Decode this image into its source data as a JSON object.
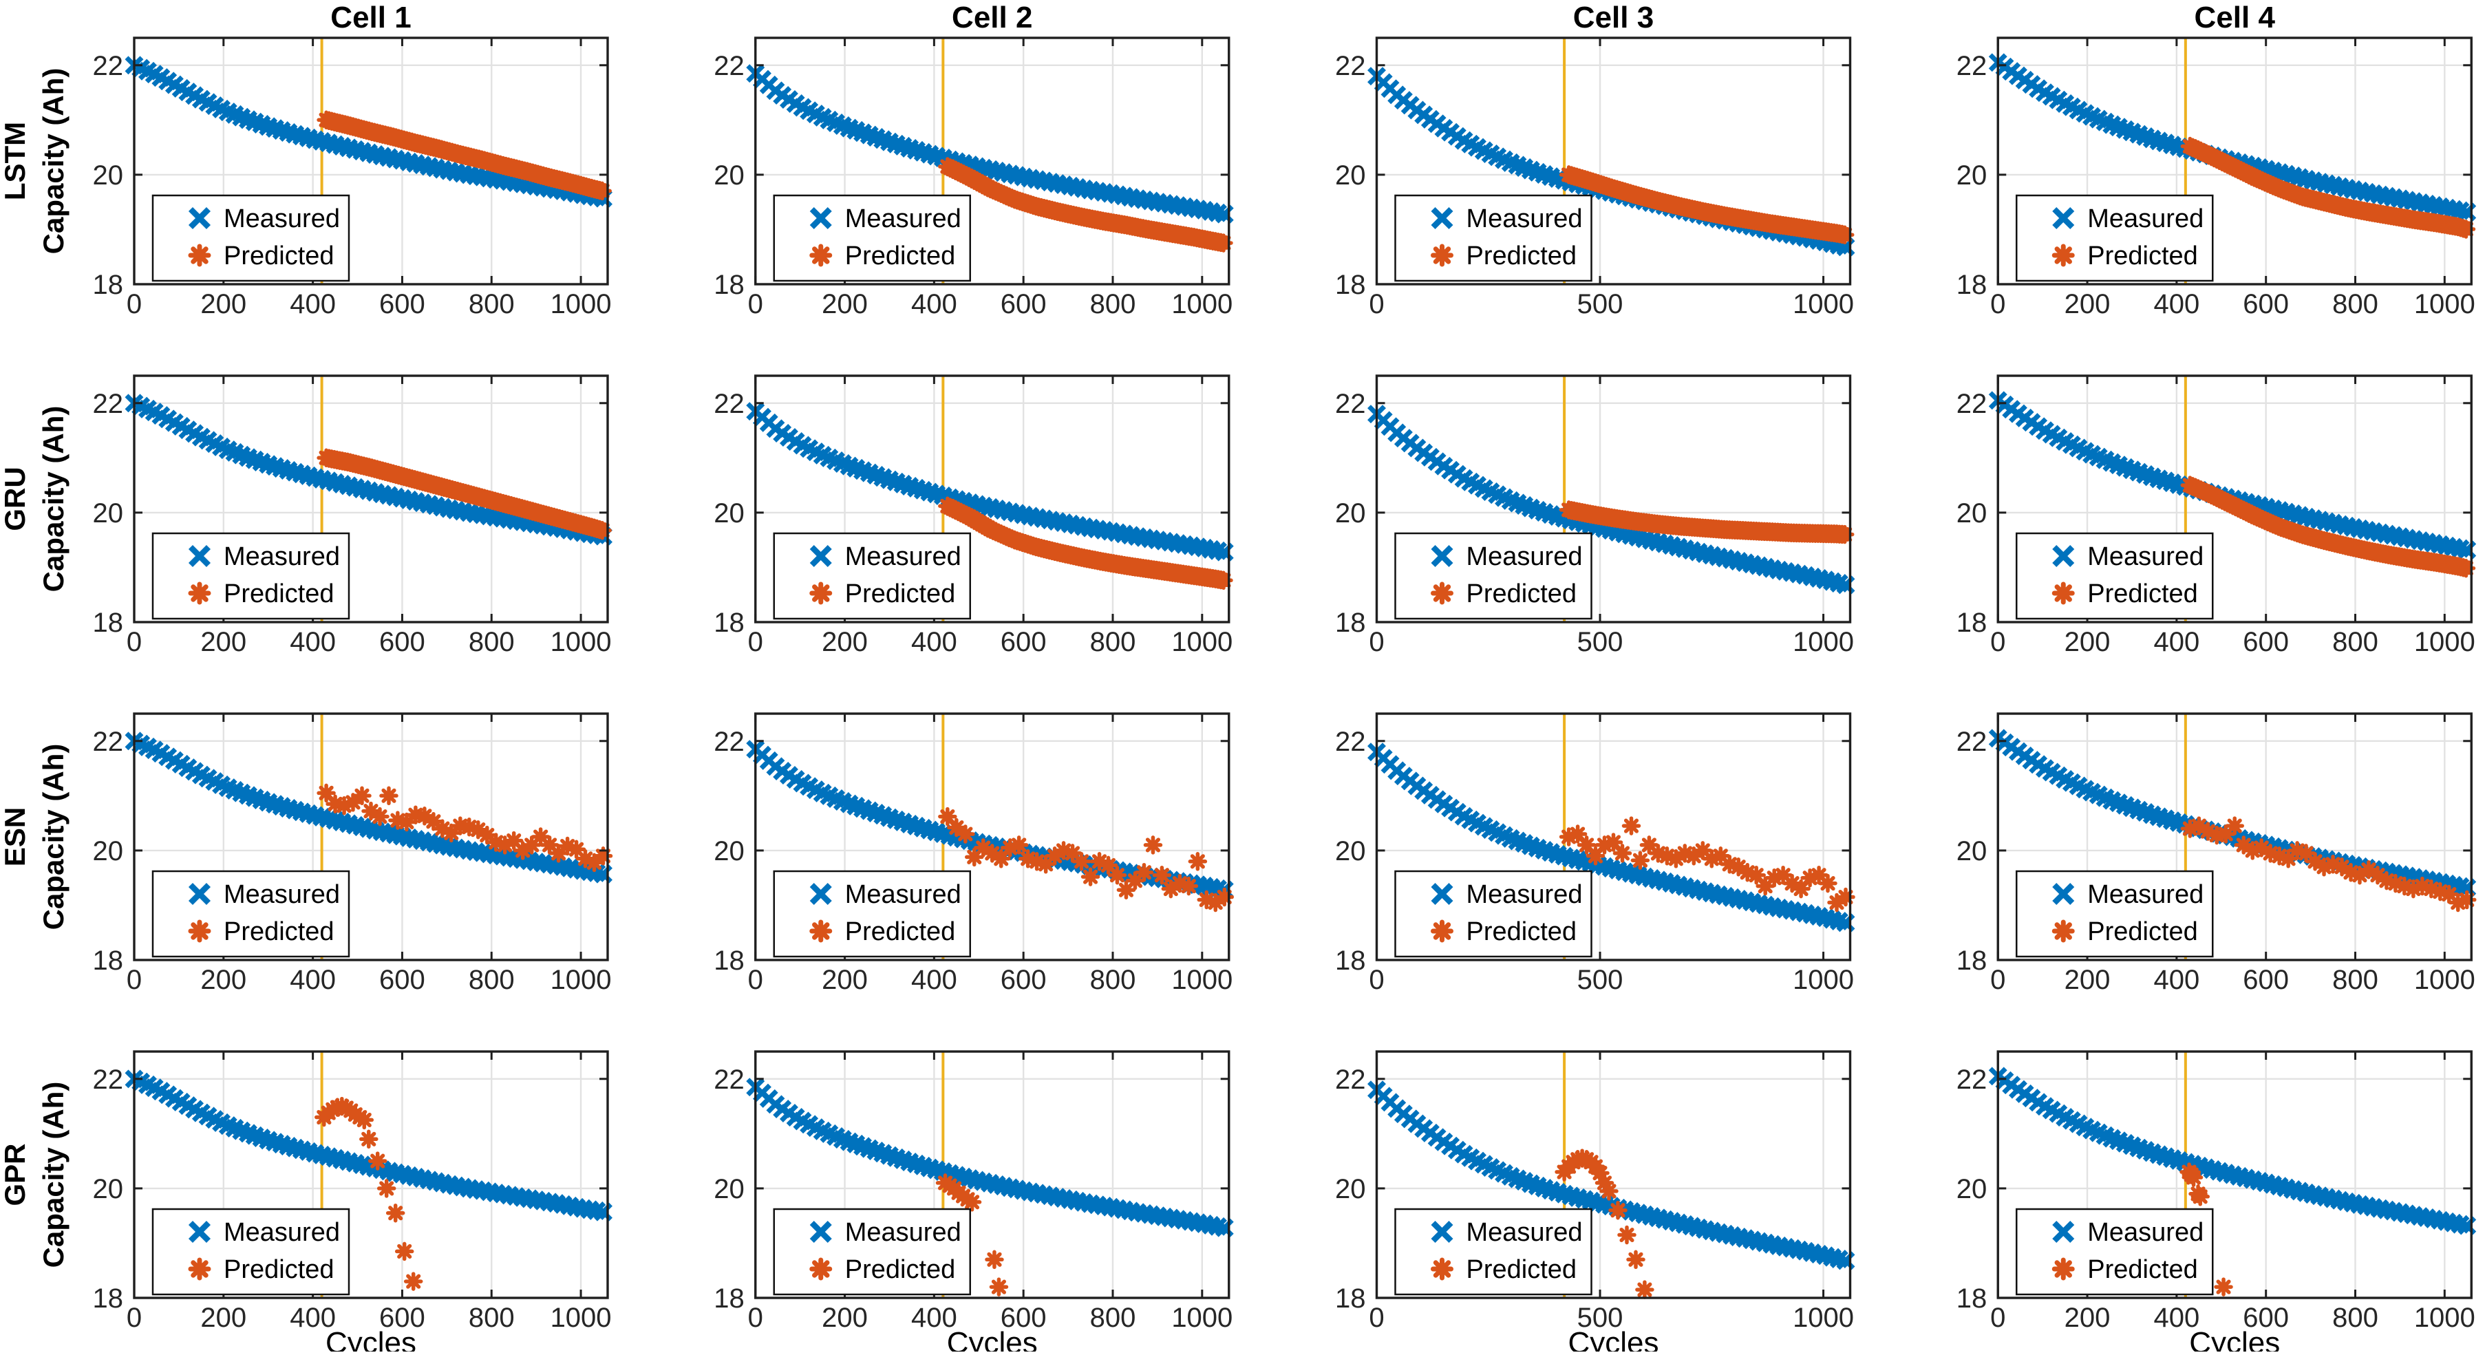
{
  "figure": {
    "background": "#ffffff",
    "description_title": "Battery capacity prediction comparison grid"
  },
  "colors": {
    "measured": "#0072BD",
    "predicted": "#D95319",
    "split_line": "#EDB120",
    "grid": "#E2E2E2",
    "tick_label": "#262626",
    "spine": "#1F1F1F",
    "text": "#000000"
  },
  "chart_data": {
    "type": "scatter",
    "columns": [
      {
        "title": "Cell 1",
        "xticks": [
          0,
          200,
          400,
          600,
          800,
          1000
        ]
      },
      {
        "title": "Cell 2",
        "xticks": [
          0,
          200,
          400,
          600,
          800,
          1000
        ]
      },
      {
        "title": "Cell 3",
        "xticks": [
          0,
          500,
          1000
        ]
      },
      {
        "title": "Cell 4",
        "xticks": [
          0,
          200,
          400,
          600,
          800,
          1000
        ]
      }
    ],
    "rows": [
      {
        "model": "LSTM"
      },
      {
        "model": "GRU"
      },
      {
        "model": "ESN"
      },
      {
        "model": "GPR"
      }
    ],
    "ylabel_line2": "Capacity (Ah)",
    "xlabel": "Cycles",
    "legend": {
      "measured_label": "Measured",
      "predicted_label": "Predicted",
      "position": "lower-left"
    },
    "xlim": [
      0,
      1060
    ],
    "ylim": [
      18,
      22.5
    ],
    "yticks": [
      18,
      20,
      22
    ],
    "grid": true,
    "train_test_split_x": 420,
    "x_measured": [
      0,
      50,
      100,
      150,
      200,
      250,
      300,
      350,
      400,
      450,
      500,
      550,
      600,
      650,
      700,
      750,
      800,
      850,
      900,
      950,
      1000,
      1050
    ],
    "measured": {
      "Cell 1": [
        22.0,
        21.82,
        21.6,
        21.38,
        21.18,
        21.02,
        20.88,
        20.76,
        20.65,
        20.55,
        20.45,
        20.35,
        20.26,
        20.17,
        20.08,
        20.0,
        19.93,
        19.86,
        19.79,
        19.72,
        19.64,
        19.57
      ],
      "Cell 2": [
        21.85,
        21.5,
        21.25,
        21.05,
        20.88,
        20.74,
        20.6,
        20.47,
        20.35,
        20.24,
        20.14,
        20.05,
        19.96,
        19.88,
        19.8,
        19.72,
        19.65,
        19.57,
        19.5,
        19.43,
        19.36,
        19.28
      ],
      "Cell 3": [
        21.8,
        21.42,
        21.12,
        20.85,
        20.6,
        20.4,
        20.22,
        20.07,
        19.94,
        19.83,
        19.73,
        19.62,
        19.52,
        19.42,
        19.32,
        19.22,
        19.13,
        19.04,
        18.95,
        18.87,
        18.78,
        18.68
      ],
      "Cell 4": [
        22.05,
        21.78,
        21.52,
        21.3,
        21.1,
        20.93,
        20.78,
        20.64,
        20.52,
        20.41,
        20.3,
        20.2,
        20.1,
        20.0,
        19.9,
        19.81,
        19.72,
        19.64,
        19.56,
        19.48,
        19.4,
        19.32
      ]
    },
    "x_predicted_smooth": [
      430,
      480,
      530,
      580,
      630,
      680,
      730,
      780,
      830,
      880,
      930,
      980,
      1030,
      1050
    ],
    "x_predicted_esn": [
      430,
      450,
      470,
      490,
      510,
      530,
      550,
      570,
      590,
      610,
      630,
      650,
      670,
      690,
      710,
      730,
      750,
      770,
      790,
      810,
      830,
      850,
      870,
      890,
      910,
      930,
      950,
      970,
      990,
      1010,
      1030,
      1050
    ],
    "predicted": {
      "LSTM": {
        "Cell 1": {
          "x": "smooth",
          "y": [
            21.0,
            20.9,
            20.79,
            20.69,
            20.58,
            20.48,
            20.37,
            20.27,
            20.16,
            20.06,
            19.95,
            19.85,
            19.74,
            19.7
          ]
        },
        "Cell 2": {
          "x": "smooth",
          "y": [
            20.15,
            19.95,
            19.73,
            19.55,
            19.42,
            19.32,
            19.23,
            19.15,
            19.08,
            19.0,
            18.93,
            18.86,
            18.78,
            18.75
          ]
        },
        "Cell 3": {
          "x": "smooth",
          "y": [
            20.0,
            19.88,
            19.75,
            19.63,
            19.52,
            19.42,
            19.33,
            19.25,
            19.18,
            19.11,
            19.05,
            18.99,
            18.93,
            18.9
          ]
        },
        "Cell 4": {
          "x": "smooth",
          "y": [
            20.52,
            20.33,
            20.13,
            19.93,
            19.75,
            19.6,
            19.5,
            19.4,
            19.32,
            19.25,
            19.18,
            19.12,
            19.05,
            19.0
          ]
        }
      },
      "GRU": {
        "Cell 1": {
          "x": "smooth",
          "y": [
            21.0,
            20.92,
            20.82,
            20.71,
            20.6,
            20.49,
            20.38,
            20.27,
            20.16,
            20.05,
            19.94,
            19.83,
            19.72,
            19.67
          ]
        },
        "Cell 2": {
          "x": "smooth",
          "y": [
            20.12,
            19.92,
            19.68,
            19.5,
            19.37,
            19.27,
            19.18,
            19.1,
            19.03,
            18.97,
            18.91,
            18.85,
            18.79,
            18.76
          ]
        },
        "Cell 3": {
          "x": "smooth",
          "y": [
            20.05,
            19.97,
            19.9,
            19.84,
            19.79,
            19.75,
            19.72,
            19.69,
            19.67,
            19.65,
            19.63,
            19.62,
            19.61,
            19.6
          ]
        },
        "Cell 4": {
          "x": "smooth",
          "y": [
            20.5,
            20.32,
            20.12,
            19.92,
            19.74,
            19.6,
            19.49,
            19.39,
            19.3,
            19.22,
            19.15,
            19.09,
            19.02,
            18.98
          ]
        }
      },
      "ESN": {
        "Cell 1": {
          "x": "esn",
          "y": [
            21.05,
            20.85,
            20.82,
            20.88,
            21.0,
            20.72,
            20.62,
            21.0,
            20.55,
            20.52,
            20.65,
            20.63,
            20.53,
            20.4,
            20.32,
            20.45,
            20.43,
            20.38,
            20.28,
            20.15,
            20.1,
            20.18,
            20.0,
            20.1,
            20.25,
            20.1,
            19.95,
            20.08,
            20.02,
            19.85,
            19.78,
            19.9
          ]
        },
        "Cell 2": {
          "x": "esn",
          "y": [
            20.62,
            20.42,
            20.3,
            19.88,
            20.05,
            19.95,
            19.85,
            20.05,
            20.1,
            19.85,
            19.8,
            19.75,
            19.9,
            20.0,
            19.95,
            19.8,
            19.52,
            19.8,
            19.73,
            19.55,
            19.28,
            19.45,
            19.6,
            20.1,
            19.55,
            19.3,
            19.4,
            19.35,
            19.8,
            19.1,
            19.05,
            19.15
          ]
        },
        "Cell 3": {
          "x": "esn",
          "y": [
            20.25,
            20.3,
            20.1,
            19.9,
            20.1,
            20.15,
            19.95,
            20.45,
            19.82,
            20.1,
            19.95,
            19.9,
            19.85,
            19.95,
            19.9,
            20.0,
            19.85,
            19.9,
            19.75,
            19.7,
            19.6,
            19.55,
            19.35,
            19.5,
            19.55,
            19.4,
            19.3,
            19.5,
            19.55,
            19.4,
            19.05,
            19.15
          ]
        },
        "Cell 4": {
          "x": "esn",
          "y": [
            20.4,
            20.45,
            20.35,
            20.28,
            20.3,
            20.45,
            20.1,
            20.0,
            20.05,
            19.95,
            19.9,
            19.85,
            20.0,
            19.95,
            19.8,
            19.7,
            19.75,
            19.7,
            19.6,
            19.55,
            19.65,
            19.55,
            19.45,
            19.4,
            19.35,
            19.3,
            19.35,
            19.3,
            19.25,
            19.2,
            19.05,
            19.1
          ]
        }
      },
      "GPR": {
        "Cell 1": {
          "x": [
            425,
            435,
            445,
            455,
            465,
            475,
            485,
            495,
            505,
            515,
            525,
            545,
            565,
            585,
            605,
            625
          ],
          "y": [
            21.3,
            21.38,
            21.44,
            21.48,
            21.5,
            21.47,
            21.42,
            21.35,
            21.3,
            21.25,
            20.9,
            20.5,
            20.0,
            19.55,
            18.85,
            18.3
          ]
        },
        "Cell 2": {
          "x": [
            425,
            435,
            445,
            455,
            465,
            475,
            485,
            535,
            545
          ],
          "y": [
            20.1,
            20.05,
            20.0,
            19.92,
            19.86,
            19.8,
            19.75,
            18.7,
            18.2
          ]
        },
        "Cell 3": {
          "x": [
            420,
            430,
            440,
            450,
            460,
            470,
            480,
            490,
            500,
            510,
            520,
            540,
            560,
            580,
            600
          ],
          "y": [
            20.3,
            20.4,
            20.48,
            20.53,
            20.55,
            20.53,
            20.48,
            20.4,
            20.28,
            20.1,
            19.95,
            19.6,
            19.15,
            18.7,
            18.15
          ]
        },
        "Cell 4": {
          "x": [
            428,
            433,
            438,
            448,
            453,
            505
          ],
          "y": [
            20.3,
            20.25,
            20.2,
            19.9,
            19.85,
            18.2
          ]
        }
      }
    }
  }
}
